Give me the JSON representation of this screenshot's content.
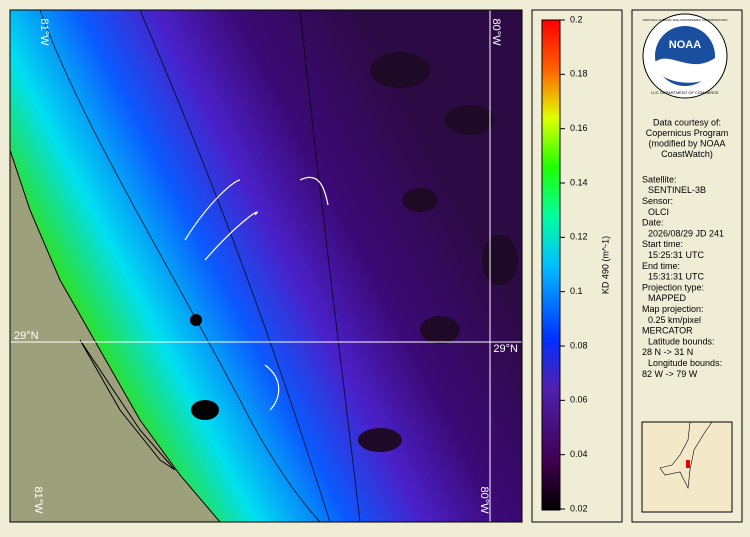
{
  "map": {
    "labels": {
      "lon_left_top": "81°W",
      "lon_right_top": "80°W",
      "lat_left": "29°N",
      "lat_right": "29°N",
      "lon_left_bottom": "81°W",
      "lon_right_bottom": "80°W"
    }
  },
  "colorbar": {
    "label": "KD 490 (m^-1)",
    "lim": [
      0.02,
      0.2
    ],
    "ticks": [
      0.02,
      0.04,
      0.06,
      0.08,
      0.1,
      0.12,
      0.14,
      0.16,
      0.18,
      0.2
    ]
  },
  "logo": {
    "name": "NOAA",
    "agency": "NATIONAL OCEANIC AND ATMOSPHERIC ADMINISTRATION",
    "department": "U.S. DEPARTMENT OF COMMERCE"
  },
  "info": {
    "courtesy": [
      "Data courtesy of:",
      "Copernicus Program",
      "(modified by NOAA",
      "CoastWatch)"
    ],
    "details": [
      "Satellite:",
      "SENTINEL-3B",
      "Sensor:",
      "OLCI",
      "Date:",
      "2026/08/29 JD 241",
      "Start time:",
      "15:25:31 UTC",
      "End time:",
      "15:31:31 UTC",
      "Projection type:",
      "MAPPED",
      "Map projection:",
      "0.25 km/pixel",
      "MERCATOR",
      "Latitude bounds:",
      "28 N -> 31 N",
      "Longitude bounds:",
      "82 W -> 79 W"
    ]
  }
}
